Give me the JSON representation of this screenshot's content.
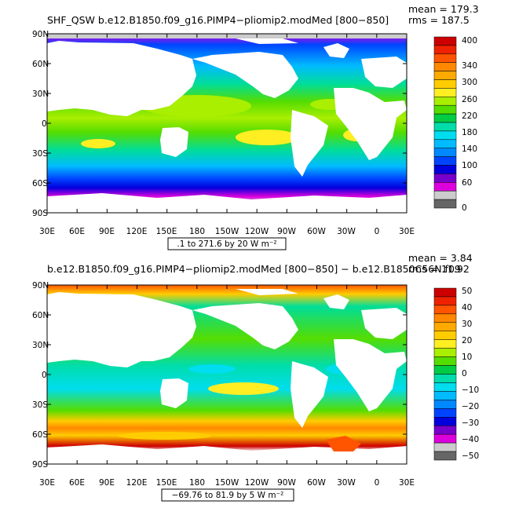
{
  "panels": [
    {
      "title": "SHF_QSW  b.e12.B1850.f09_g16.PIMP4−pliomip2.modMed  [800−850]",
      "stats": [
        "mean = 179.3",
        "rms = 187.5"
      ],
      "range_label": ".1 to 271.6 by 20  W m⁻²",
      "lat_labels": [
        "90N",
        "60N",
        "30N",
        "0",
        "30S",
        "60S",
        "90S"
      ],
      "lon_labels": [
        "30E",
        "60E",
        "90E",
        "120E",
        "150E",
        "180",
        "150W",
        "120W",
        "90W",
        "60W",
        "30W",
        "0",
        "30E"
      ],
      "colorbar": {
        "labels": [
          "400",
          "340",
          "300",
          "260",
          "220",
          "180",
          "140",
          "100",
          "60",
          "0"
        ],
        "colors": [
          "#cc0000",
          "#ee2200",
          "#ff5500",
          "#ff8800",
          "#ffaa00",
          "#ffcc00",
          "#ffee22",
          "#aaee00",
          "#55dd00",
          "#00cc44",
          "#00ddaa",
          "#00ddee",
          "#00bbff",
          "#0088ff",
          "#0044ff",
          "#0000dd",
          "#7700cc",
          "#dd00dd",
          "#cccccc",
          "#666666"
        ]
      }
    },
    {
      "title": "b.e12.B1850.f09_g16.PIMP4−pliomip2.modMed  [800−850]  −  b.e12.B1850C56N.f09",
      "stats": [
        "mean = 3.84",
        "rms = 11.92"
      ],
      "range_label": "−69.76 to 81.9 by 5  W m⁻²",
      "lat_labels": [
        "90N",
        "60N",
        "30N",
        "0",
        "30S",
        "60S",
        "90S"
      ],
      "lon_labels": [
        "30E",
        "60E",
        "90E",
        "120E",
        "150E",
        "180",
        "150W",
        "120W",
        "90W",
        "60W",
        "30W",
        "0",
        "30E"
      ],
      "colorbar": {
        "labels": [
          "50",
          "40",
          "30",
          "20",
          "10",
          "0",
          "−10",
          "−20",
          "−30",
          "−40",
          "−50"
        ],
        "colors": [
          "#cc0000",
          "#ee2200",
          "#ff5500",
          "#ff8800",
          "#ffaa00",
          "#ffcc00",
          "#ffee22",
          "#aaee00",
          "#55dd00",
          "#00cc44",
          "#00ddaa",
          "#00ddee",
          "#00bbff",
          "#0088ff",
          "#0044ff",
          "#0000dd",
          "#7700cc",
          "#dd00dd",
          "#cccccc",
          "#666666"
        ]
      }
    }
  ]
}
